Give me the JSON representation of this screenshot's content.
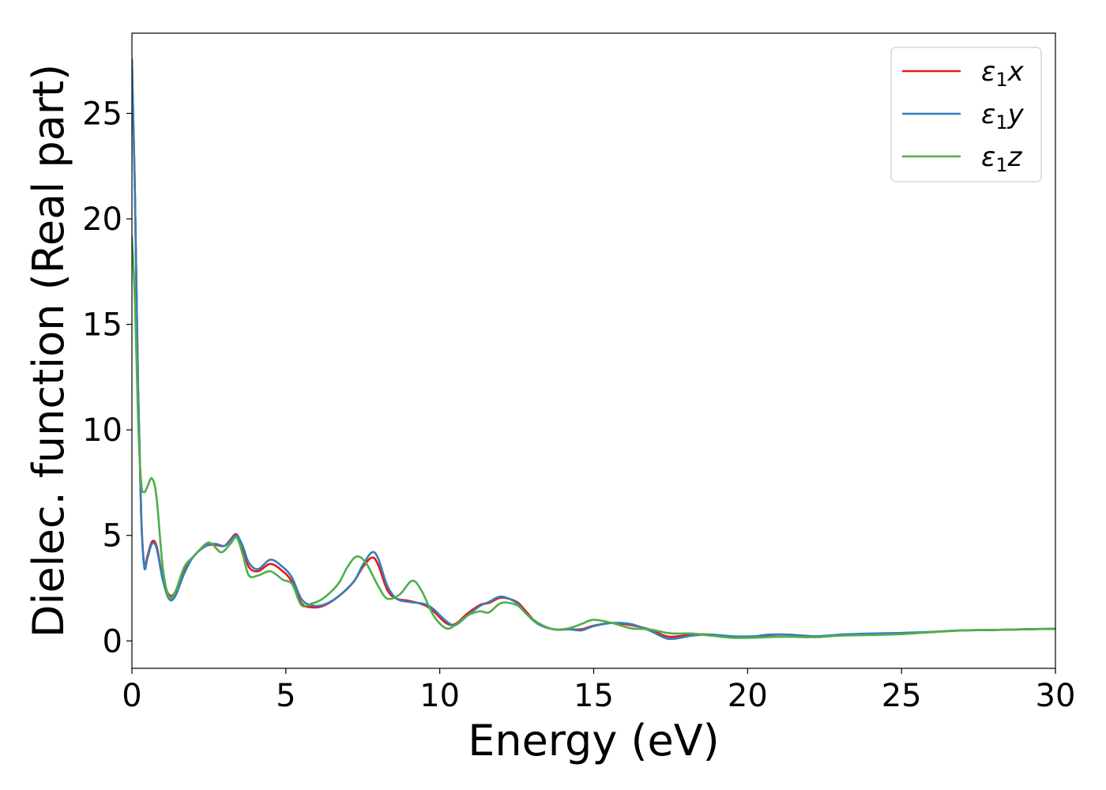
{
  "chart_data": {
    "type": "line",
    "title": "",
    "xlabel": "Energy (eV)",
    "ylabel": "Dielec. function (Real part)",
    "xlim": [
      0,
      30
    ],
    "ylim": [
      -1.3,
      28.8
    ],
    "xticks": [
      0,
      5,
      10,
      15,
      20,
      25,
      30
    ],
    "yticks": [
      0,
      5,
      10,
      15,
      20,
      25
    ],
    "grid": false,
    "legend_position": "top-right",
    "series": [
      {
        "name": "ε₁x",
        "legend": {
          "base": "ε",
          "sub": "1",
          "var": "x"
        },
        "color": "#e41a1c",
        "points": [
          [
            0,
            27.5
          ],
          [
            0.1,
            21
          ],
          [
            0.2,
            12
          ],
          [
            0.3,
            6
          ],
          [
            0.4,
            3.6
          ],
          [
            0.5,
            4.0
          ],
          [
            0.65,
            4.7
          ],
          [
            0.8,
            4.5
          ],
          [
            1.0,
            3.0
          ],
          [
            1.2,
            2.2
          ],
          [
            1.4,
            2.3
          ],
          [
            1.7,
            3.3
          ],
          [
            2.0,
            4.0
          ],
          [
            2.4,
            4.5
          ],
          [
            2.7,
            4.55
          ],
          [
            3.0,
            4.5
          ],
          [
            3.2,
            4.8
          ],
          [
            3.4,
            5.05
          ],
          [
            3.6,
            4.4
          ],
          [
            3.8,
            3.5
          ],
          [
            4.1,
            3.3
          ],
          [
            4.5,
            3.65
          ],
          [
            4.9,
            3.3
          ],
          [
            5.2,
            2.8
          ],
          [
            5.5,
            1.8
          ],
          [
            5.8,
            1.6
          ],
          [
            6.2,
            1.65
          ],
          [
            6.7,
            2.1
          ],
          [
            7.2,
            2.8
          ],
          [
            7.5,
            3.5
          ],
          [
            7.8,
            3.95
          ],
          [
            8.0,
            3.6
          ],
          [
            8.3,
            2.4
          ],
          [
            8.6,
            2.0
          ],
          [
            9.0,
            1.9
          ],
          [
            9.5,
            1.7
          ],
          [
            9.8,
            1.4
          ],
          [
            10.2,
            0.85
          ],
          [
            10.5,
            0.8
          ],
          [
            10.9,
            1.3
          ],
          [
            11.3,
            1.7
          ],
          [
            11.6,
            1.8
          ],
          [
            12.0,
            2.05
          ],
          [
            12.5,
            1.85
          ],
          [
            12.8,
            1.4
          ],
          [
            13.2,
            0.8
          ],
          [
            13.7,
            0.55
          ],
          [
            14.2,
            0.55
          ],
          [
            14.6,
            0.55
          ],
          [
            15.0,
            0.72
          ],
          [
            15.6,
            0.85
          ],
          [
            16.2,
            0.75
          ],
          [
            16.8,
            0.55
          ],
          [
            17.3,
            0.25
          ],
          [
            17.6,
            0.2
          ],
          [
            18.2,
            0.3
          ],
          [
            18.8,
            0.3
          ],
          [
            19.5,
            0.2
          ],
          [
            20.2,
            0.2
          ],
          [
            20.7,
            0.28
          ],
          [
            21.3,
            0.3
          ],
          [
            21.8,
            0.25
          ],
          [
            22.3,
            0.22
          ],
          [
            23.0,
            0.28
          ],
          [
            24.0,
            0.32
          ],
          [
            25.0,
            0.35
          ],
          [
            26.0,
            0.42
          ],
          [
            27.0,
            0.5
          ],
          [
            28.0,
            0.52
          ],
          [
            29.0,
            0.55
          ],
          [
            30.0,
            0.57
          ]
        ]
      },
      {
        "name": "ε₁y",
        "legend": {
          "base": "ε",
          "sub": "1",
          "var": "y"
        },
        "color": "#377eb8",
        "points": [
          [
            0,
            27.6
          ],
          [
            0.1,
            21
          ],
          [
            0.2,
            12
          ],
          [
            0.3,
            6
          ],
          [
            0.4,
            3.5
          ],
          [
            0.5,
            3.9
          ],
          [
            0.65,
            4.6
          ],
          [
            0.8,
            4.4
          ],
          [
            1.0,
            2.9
          ],
          [
            1.2,
            2.0
          ],
          [
            1.4,
            2.1
          ],
          [
            1.7,
            3.2
          ],
          [
            2.0,
            4.0
          ],
          [
            2.4,
            4.5
          ],
          [
            2.7,
            4.6
          ],
          [
            3.0,
            4.5
          ],
          [
            3.2,
            4.75
          ],
          [
            3.4,
            5.0
          ],
          [
            3.6,
            4.5
          ],
          [
            3.8,
            3.7
          ],
          [
            4.1,
            3.4
          ],
          [
            4.5,
            3.85
          ],
          [
            4.9,
            3.5
          ],
          [
            5.2,
            3.0
          ],
          [
            5.5,
            2.0
          ],
          [
            5.8,
            1.7
          ],
          [
            6.2,
            1.7
          ],
          [
            6.7,
            2.1
          ],
          [
            7.2,
            2.8
          ],
          [
            7.5,
            3.6
          ],
          [
            7.8,
            4.2
          ],
          [
            8.0,
            3.9
          ],
          [
            8.3,
            2.6
          ],
          [
            8.6,
            2.0
          ],
          [
            9.0,
            1.85
          ],
          [
            9.5,
            1.75
          ],
          [
            9.8,
            1.5
          ],
          [
            10.2,
            0.95
          ],
          [
            10.5,
            0.75
          ],
          [
            10.9,
            1.2
          ],
          [
            11.3,
            1.65
          ],
          [
            11.6,
            1.85
          ],
          [
            12.0,
            2.1
          ],
          [
            12.5,
            1.8
          ],
          [
            12.8,
            1.3
          ],
          [
            13.2,
            0.8
          ],
          [
            13.7,
            0.55
          ],
          [
            14.2,
            0.55
          ],
          [
            14.6,
            0.5
          ],
          [
            15.0,
            0.7
          ],
          [
            15.6,
            0.85
          ],
          [
            16.2,
            0.8
          ],
          [
            16.8,
            0.5
          ],
          [
            17.3,
            0.15
          ],
          [
            17.6,
            0.1
          ],
          [
            18.2,
            0.25
          ],
          [
            18.8,
            0.3
          ],
          [
            19.5,
            0.22
          ],
          [
            20.2,
            0.22
          ],
          [
            20.7,
            0.3
          ],
          [
            21.3,
            0.3
          ],
          [
            21.8,
            0.25
          ],
          [
            22.3,
            0.22
          ],
          [
            23.0,
            0.3
          ],
          [
            24.0,
            0.35
          ],
          [
            25.0,
            0.38
          ],
          [
            26.0,
            0.43
          ],
          [
            27.0,
            0.5
          ],
          [
            28.0,
            0.52
          ],
          [
            29.0,
            0.55
          ],
          [
            30.0,
            0.58
          ]
        ]
      },
      {
        "name": "ε₁z",
        "legend": {
          "base": "ε",
          "sub": "1",
          "var": "z"
        },
        "color": "#4daf4a",
        "points": [
          [
            0,
            19.2
          ],
          [
            0.1,
            16
          ],
          [
            0.2,
            10.5
          ],
          [
            0.3,
            7.5
          ],
          [
            0.4,
            7.05
          ],
          [
            0.5,
            7.3
          ],
          [
            0.65,
            7.7
          ],
          [
            0.8,
            6.8
          ],
          [
            1.0,
            3.5
          ],
          [
            1.2,
            2.1
          ],
          [
            1.4,
            2.3
          ],
          [
            1.7,
            3.5
          ],
          [
            2.0,
            4.0
          ],
          [
            2.4,
            4.6
          ],
          [
            2.6,
            4.6
          ],
          [
            2.9,
            4.2
          ],
          [
            3.2,
            4.6
          ],
          [
            3.4,
            4.9
          ],
          [
            3.6,
            4.1
          ],
          [
            3.8,
            3.1
          ],
          [
            4.1,
            3.1
          ],
          [
            4.5,
            3.3
          ],
          [
            4.9,
            2.9
          ],
          [
            5.2,
            2.7
          ],
          [
            5.5,
            1.7
          ],
          [
            5.8,
            1.75
          ],
          [
            6.2,
            2.0
          ],
          [
            6.7,
            2.7
          ],
          [
            7.0,
            3.5
          ],
          [
            7.3,
            4.0
          ],
          [
            7.6,
            3.7
          ],
          [
            8.0,
            2.6
          ],
          [
            8.3,
            2.0
          ],
          [
            8.7,
            2.2
          ],
          [
            9.1,
            2.85
          ],
          [
            9.4,
            2.4
          ],
          [
            9.8,
            1.2
          ],
          [
            10.2,
            0.6
          ],
          [
            10.5,
            0.75
          ],
          [
            10.9,
            1.2
          ],
          [
            11.3,
            1.4
          ],
          [
            11.6,
            1.35
          ],
          [
            12.0,
            1.8
          ],
          [
            12.5,
            1.7
          ],
          [
            12.8,
            1.3
          ],
          [
            13.2,
            0.85
          ],
          [
            13.7,
            0.55
          ],
          [
            14.2,
            0.6
          ],
          [
            14.6,
            0.8
          ],
          [
            15.0,
            1.0
          ],
          [
            15.6,
            0.85
          ],
          [
            16.2,
            0.6
          ],
          [
            16.8,
            0.55
          ],
          [
            17.3,
            0.4
          ],
          [
            17.6,
            0.35
          ],
          [
            18.2,
            0.35
          ],
          [
            18.8,
            0.25
          ],
          [
            19.5,
            0.15
          ],
          [
            20.2,
            0.15
          ],
          [
            20.7,
            0.18
          ],
          [
            21.3,
            0.2
          ],
          [
            21.8,
            0.18
          ],
          [
            22.3,
            0.18
          ],
          [
            23.0,
            0.25
          ],
          [
            24.0,
            0.28
          ],
          [
            25.0,
            0.32
          ],
          [
            26.0,
            0.42
          ],
          [
            27.0,
            0.5
          ],
          [
            28.0,
            0.52
          ],
          [
            29.0,
            0.55
          ],
          [
            30.0,
            0.58
          ]
        ]
      }
    ]
  }
}
